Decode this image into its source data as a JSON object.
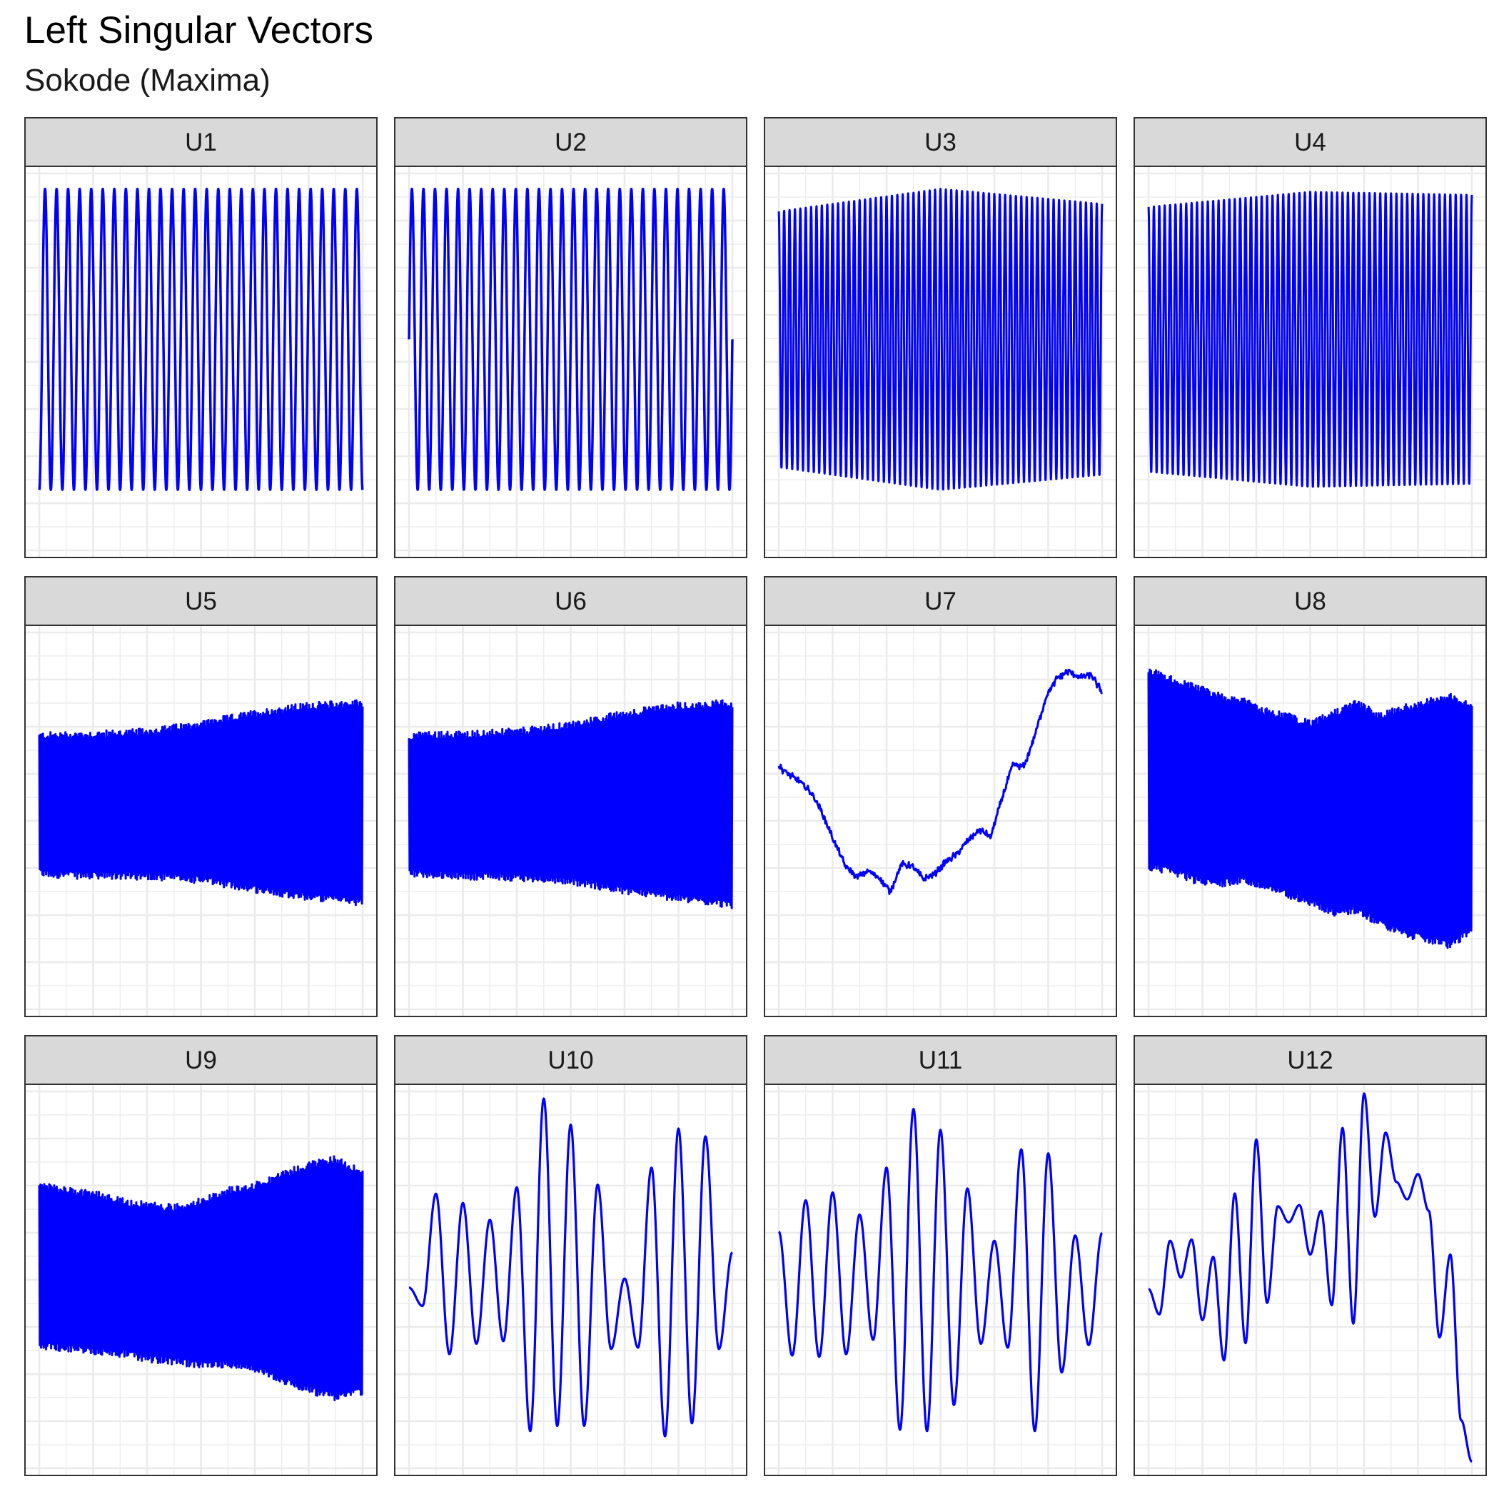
{
  "title": "Left Singular Vectors",
  "subtitle": "Sokode (Maxima)",
  "colors": {
    "line": "#0000ff",
    "strip_fill": "#d9d9d9",
    "grid": "#ebebeb",
    "panel_border": "#333333"
  },
  "chart_data": {
    "type": "line",
    "layout": "facet grid 3 rows x 4 columns",
    "grid": true,
    "legend": "none",
    "axis_text": "none",
    "panels": [
      {
        "label": "U1",
        "kind": "sine",
        "cycles": 28,
        "ylim": [
          -1.45,
          1.15
        ],
        "envelope": [
          1.0,
          1.0
        ],
        "phase": -1.5708,
        "lw": 3.5
      },
      {
        "label": "U2",
        "kind": "sine",
        "cycles": 28,
        "ylim": [
          -1.45,
          1.15
        ],
        "envelope": [
          1.0,
          1.0
        ],
        "phase": 0.0,
        "lw": 3.5
      },
      {
        "label": "U3",
        "kind": "band",
        "cycles": 60,
        "ylim": [
          -1.45,
          1.15
        ],
        "envelope": [
          0.85,
          1.0,
          0.9
        ],
        "lw": 3
      },
      {
        "label": "U4",
        "kind": "band",
        "cycles": 60,
        "ylim": [
          -1.45,
          1.15
        ],
        "envelope": [
          0.88,
          0.98,
          0.96
        ],
        "lw": 3
      },
      {
        "label": "U5",
        "kind": "solid",
        "ylim": [
          -1.6,
          1.4
        ],
        "upper": [
          0.55,
          0.56,
          0.58,
          0.64,
          0.72,
          0.78,
          0.8
        ],
        "lower": [
          -0.5,
          -0.52,
          -0.52,
          -0.55,
          -0.62,
          -0.68,
          -0.72
        ],
        "lw": 3
      },
      {
        "label": "U6",
        "kind": "solid",
        "ylim": [
          -1.6,
          1.4
        ],
        "upper": [
          0.55,
          0.56,
          0.58,
          0.63,
          0.72,
          0.78,
          0.8
        ],
        "lower": [
          -0.5,
          -0.52,
          -0.53,
          -0.56,
          -0.63,
          -0.69,
          -0.74
        ],
        "lw": 3
      },
      {
        "label": "U7",
        "kind": "path",
        "ylim": [
          -2.0,
          1.6
        ],
        "points": [
          0.3,
          0.22,
          0.15,
          0.05,
          -0.15,
          -0.4,
          -0.62,
          -0.72,
          -0.66,
          -0.72,
          -0.85,
          -0.6,
          -0.62,
          -0.74,
          -0.68,
          -0.58,
          -0.5,
          -0.38,
          -0.28,
          -0.35,
          0.0,
          0.32,
          0.3,
          0.6,
          0.95,
          1.12,
          1.18,
          1.12,
          1.15,
          0.98
        ],
        "noise": 0.018,
        "lw": 3
      },
      {
        "label": "U8",
        "kind": "solid",
        "ylim": [
          -1.6,
          1.4
        ],
        "upper": [
          1.05,
          0.98,
          0.92,
          0.86,
          0.82,
          0.74,
          0.7,
          0.64,
          0.72,
          0.8,
          0.7,
          0.76,
          0.8,
          0.86,
          0.78
        ],
        "lower": [
          -0.45,
          -0.48,
          -0.55,
          -0.58,
          -0.55,
          -0.6,
          -0.66,
          -0.72,
          -0.8,
          -0.78,
          -0.88,
          -0.96,
          -1.0,
          -1.05,
          -0.95
        ],
        "lw": 3
      },
      {
        "label": "U9",
        "kind": "solid",
        "ylim": [
          -1.6,
          1.4
        ],
        "upper": [
          0.62,
          0.58,
          0.56,
          0.5,
          0.47,
          0.45,
          0.5,
          0.58,
          0.62,
          0.7,
          0.78,
          0.82,
          0.72
        ],
        "lower": [
          -0.6,
          -0.62,
          -0.64,
          -0.66,
          -0.7,
          -0.72,
          -0.75,
          -0.74,
          -0.78,
          -0.86,
          -0.94,
          -1.0,
          -0.95
        ],
        "lw": 3
      },
      {
        "label": "U10",
        "kind": "wave",
        "ylim": [
          -1.5,
          1.5
        ],
        "points": [
          -0.06,
          -0.2,
          0.66,
          -0.57,
          0.59,
          -0.49,
          0.46,
          -0.47,
          0.71,
          -1.16,
          1.39,
          -1.12,
          1.19,
          -1.12,
          0.73,
          -0.53,
          0.01,
          -0.52,
          0.86,
          -1.2,
          1.16,
          -1.1,
          1.1,
          -0.53,
          0.21
        ],
        "lw": 3.2
      },
      {
        "label": "U11",
        "kind": "wave",
        "ylim": [
          -1.5,
          1.5
        ],
        "points": [
          0.37,
          -0.58,
          0.61,
          -0.59,
          0.67,
          -0.57,
          0.5,
          -0.46,
          0.86,
          -1.15,
          1.31,
          -1.16,
          1.15,
          -0.96,
          0.7,
          -0.49,
          0.3,
          -0.52,
          1.0,
          -1.16,
          0.97,
          -0.71,
          0.34,
          -0.5,
          0.36
        ],
        "lw": 3.2
      },
      {
        "label": "U12",
        "kind": "wave",
        "ylim": [
          -1.9,
          1.5
        ],
        "points": [
          -0.28,
          -0.5,
          0.14,
          -0.18,
          0.15,
          -0.55,
          0.0,
          -0.9,
          0.55,
          -0.75,
          1.02,
          -0.4,
          0.44,
          0.3,
          0.45,
          0.02,
          0.4,
          -0.42,
          1.12,
          -0.58,
          1.42,
          0.35,
          1.08,
          0.65,
          0.5,
          0.72,
          0.4,
          -0.7,
          0.02,
          -1.42,
          -1.78
        ],
        "lw": 3.2
      }
    ]
  }
}
